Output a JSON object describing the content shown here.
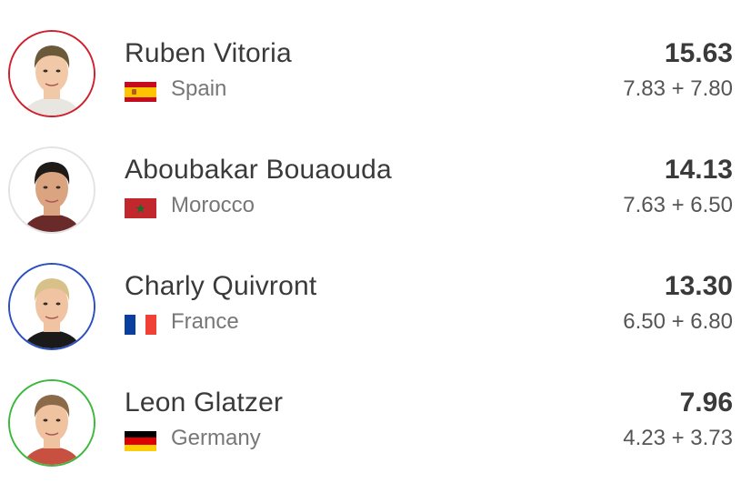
{
  "players": [
    {
      "name": "Ruben Vitoria",
      "country": "Spain",
      "total": "15.63",
      "parts": "7.83 + 7.80",
      "ring_color": "#d0202e",
      "flag": "spain-flag"
    },
    {
      "name": "Aboubakar Bouaouda",
      "country": "Morocco",
      "total": "14.13",
      "parts": "7.63 + 6.50",
      "ring_color": "#e3e3e3",
      "flag": "morocco-flag"
    },
    {
      "name": "Charly Quivront",
      "country": "France",
      "total": "13.30",
      "parts": "6.50 + 6.80",
      "ring_color": "#2a4fc0",
      "flag": "france-flag"
    },
    {
      "name": "Leon Glatzer",
      "country": "Germany",
      "total": "7.96",
      "parts": "4.23 + 3.73",
      "ring_color": "#3cb83c",
      "flag": "germany-flag"
    }
  ]
}
